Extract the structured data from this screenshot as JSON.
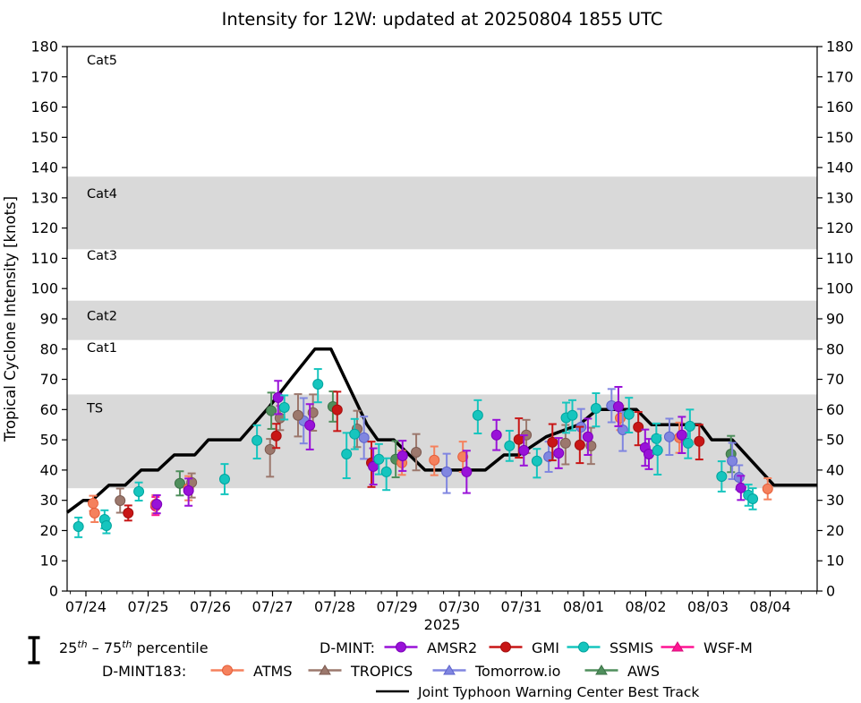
{
  "title": "Intensity for 12W: updated at 20250804 1855 UTC",
  "y_axis": {
    "label": "Tropical Cyclone Intensity [knots]",
    "min": 0,
    "max": 180,
    "tick_step": 10
  },
  "x_axis": {
    "year_label": "2025",
    "tick_labels": [
      "07/24",
      "07/25",
      "07/26",
      "07/27",
      "07/28",
      "07/29",
      "07/30",
      "07/31",
      "08/01",
      "08/02",
      "08/03",
      "08/04"
    ]
  },
  "category_bands": {
    "band_color": "#d9d9d9",
    "shaded_ranges": [
      [
        34,
        65
      ],
      [
        83,
        96
      ],
      [
        113,
        137
      ]
    ],
    "labels": [
      {
        "text": "Cat5",
        "v": 175.5
      },
      {
        "text": "Cat4",
        "v": 131.5
      },
      {
        "text": "Cat3",
        "v": 111
      },
      {
        "text": "Cat2",
        "v": 91
      },
      {
        "text": "Cat1",
        "v": 80.5
      },
      {
        "text": "TS",
        "v": 60.5
      }
    ]
  },
  "chart_data": {
    "type": "scatter",
    "x_unit": "days since 2025-07-24 00:00 UTC",
    "y_unit": "knots",
    "ylim": [
      0,
      180
    ],
    "xlim_days": [
      -0.302,
      11.755
    ],
    "best_track": {
      "name": "Joint Typhoon Warning Center Best Track",
      "color": "#000000",
      "points": [
        [
          -0.302,
          26
        ],
        [
          -0.04,
          30
        ],
        [
          0.1,
          30
        ],
        [
          0.37,
          35
        ],
        [
          0.63,
          35
        ],
        [
          0.89,
          40
        ],
        [
          1.16,
          40
        ],
        [
          1.42,
          45
        ],
        [
          1.75,
          45
        ],
        [
          1.97,
          50
        ],
        [
          2.48,
          50
        ],
        [
          2.95,
          61
        ],
        [
          3.33,
          71
        ],
        [
          3.68,
          80
        ],
        [
          3.94,
          80
        ],
        [
          4.52,
          55
        ],
        [
          4.69,
          50
        ],
        [
          4.95,
          50
        ],
        [
          5.45,
          40
        ],
        [
          6.42,
          40
        ],
        [
          6.72,
          45
        ],
        [
          6.96,
          45
        ],
        [
          7.4,
          51
        ],
        [
          7.93,
          55
        ],
        [
          8.22,
          60
        ],
        [
          8.85,
          60
        ],
        [
          9.09,
          55
        ],
        [
          9.88,
          55
        ],
        [
          10.06,
          50
        ],
        [
          10.39,
          50
        ],
        [
          11.06,
          35
        ],
        [
          11.755,
          35
        ]
      ]
    },
    "draw_order": [
      "AWS",
      "WSF-M",
      "ATMS",
      "Tomorrow.io",
      "TROPICS",
      "GMI",
      "AMSR2",
      "SSMIS"
    ],
    "series": [
      {
        "name": "AMSR2",
        "group": "D-MINT",
        "color": "#9912d8",
        "edge": "#7d00bb",
        "marker": "circle",
        "points": [
          [
            1.14,
            28.7,
            3,
            3
          ],
          [
            1.65,
            33.2,
            5,
            4
          ],
          [
            3.09,
            64,
            5.5,
            5.5
          ],
          [
            3.6,
            54.8,
            8,
            7
          ],
          [
            4.62,
            41.2,
            6,
            6
          ],
          [
            5.09,
            44.7,
            5,
            5
          ],
          [
            6.12,
            39.4,
            7,
            7
          ],
          [
            6.6,
            51.6,
            5,
            5
          ],
          [
            7.04,
            46.5,
            5,
            5
          ],
          [
            7.6,
            45.6,
            5,
            5
          ],
          [
            8.07,
            51,
            6,
            6
          ],
          [
            8.56,
            61,
            6.5,
            6.5
          ],
          [
            8.99,
            47.4,
            6,
            6
          ],
          [
            9.05,
            45.3,
            5,
            5
          ],
          [
            9.58,
            51.6,
            6,
            6
          ],
          [
            10.53,
            34.1,
            4,
            4
          ]
        ]
      },
      {
        "name": "GMI",
        "group": "D-MINT",
        "color": "#c81616",
        "edge": "#a40f0f",
        "marker": "circle",
        "points": [
          [
            0.68,
            25.8,
            2.5,
            2.5
          ],
          [
            3.06,
            51.3,
            4,
            4
          ],
          [
            4.04,
            59.9,
            7,
            6
          ],
          [
            4.59,
            42.4,
            8,
            7
          ],
          [
            6.96,
            50.1,
            6,
            7
          ],
          [
            7.5,
            49.2,
            6,
            6
          ],
          [
            7.94,
            48.3,
            6,
            6
          ],
          [
            8.88,
            54.2,
            6,
            5
          ],
          [
            9.86,
            49.5,
            6,
            5.5
          ]
        ]
      },
      {
        "name": "SSMIS",
        "group": "D-MINT",
        "color": "#16c5be",
        "edge": "#00a49e",
        "marker": "circle",
        "points": [
          [
            -0.12,
            21.3,
            3.5,
            3
          ],
          [
            0.3,
            23.7,
            3,
            3
          ],
          [
            0.33,
            21.6,
            2.5,
            2.5
          ],
          [
            0.85,
            32.9,
            3,
            3
          ],
          [
            2.23,
            37,
            5,
            5
          ],
          [
            2.75,
            49.8,
            6,
            5
          ],
          [
            3.19,
            60.7,
            4,
            4
          ],
          [
            3.73,
            68.4,
            6,
            5
          ],
          [
            4.19,
            45.3,
            8,
            7
          ],
          [
            4.32,
            51.9,
            5,
            5
          ],
          [
            4.71,
            43.6,
            5,
            5
          ],
          [
            4.83,
            39.4,
            6,
            4.5
          ],
          [
            6.3,
            58.1,
            6,
            5
          ],
          [
            6.81,
            48,
            5,
            5
          ],
          [
            7.25,
            43,
            5.5,
            4
          ],
          [
            7.72,
            57.3,
            5,
            5
          ],
          [
            7.82,
            58.1,
            5,
            5
          ],
          [
            8.2,
            60.4,
            6,
            5
          ],
          [
            8.73,
            58.4,
            6,
            5.5
          ],
          [
            9.17,
            50.4,
            5,
            5
          ],
          [
            9.19,
            46.5,
            8,
            5
          ],
          [
            9.68,
            48.9,
            5,
            5
          ],
          [
            9.71,
            54.5,
            6,
            5.5
          ],
          [
            10.22,
            37.9,
            5,
            5
          ],
          [
            10.65,
            31.7,
            3.5,
            3.5
          ],
          [
            10.72,
            30.5,
            3.5,
            3.5
          ]
        ]
      },
      {
        "name": "WSF-M",
        "group": "D-MINT",
        "color": "#ff1493",
        "edge": "#d6117b",
        "marker": "triangle",
        "points": [
          [
            1.12,
            28.1,
            3,
            3
          ]
        ]
      },
      {
        "name": "ATMS",
        "group": "D-MINT183",
        "color": "#f5815d",
        "edge": "#e55f3a",
        "marker": "circle",
        "points": [
          [
            0.115,
            29,
            2.5,
            2.5
          ],
          [
            0.14,
            25.8,
            3,
            3
          ],
          [
            1.12,
            28.7,
            3,
            3
          ],
          [
            1.65,
            34,
            4,
            4
          ],
          [
            5.08,
            42.4,
            4,
            4
          ],
          [
            5.6,
            43.3,
            5,
            4.5
          ],
          [
            6.06,
            44.4,
            5,
            5
          ],
          [
            8.59,
            57.2,
            4,
            4
          ],
          [
            9.54,
            50.7,
            5,
            5
          ],
          [
            10.96,
            33.8,
            3.5,
            3.5
          ]
        ]
      },
      {
        "name": "TROPICS",
        "group": "D-MINT183",
        "color": "#9c786d",
        "edge": "#7c5a50",
        "marker": "triangle",
        "points": [
          [
            0.55,
            29.9,
            4,
            4
          ],
          [
            1.7,
            35.9,
            5,
            3
          ],
          [
            2.96,
            46.8,
            9,
            3.5
          ],
          [
            3.12,
            57.2,
            4,
            4
          ],
          [
            3.41,
            58.1,
            7,
            7
          ],
          [
            3.65,
            59,
            6,
            6
          ],
          [
            4.36,
            53.6,
            6,
            6
          ],
          [
            5.31,
            45.9,
            6,
            6
          ],
          [
            7.08,
            51.6,
            6,
            5
          ],
          [
            7.71,
            48.9,
            7,
            6
          ],
          [
            8.12,
            48,
            6,
            6
          ]
        ]
      },
      {
        "name": "Tomorrow.io",
        "group": "D-MINT183",
        "color": "#8086e0",
        "edge": "#5d63cd",
        "marker": "triangle",
        "points": [
          [
            3.5,
            56.3,
            7.5,
            7.5
          ],
          [
            4.47,
            50.7,
            7,
            7
          ],
          [
            5.8,
            39.4,
            7,
            6
          ],
          [
            7.44,
            44.4,
            5,
            5
          ],
          [
            7.96,
            54.2,
            6,
            6
          ],
          [
            8.45,
            61.3,
            5.5,
            5.5
          ],
          [
            8.63,
            53.3,
            7,
            6
          ],
          [
            9.38,
            51,
            6,
            6
          ],
          [
            10.39,
            43,
            6,
            6
          ],
          [
            10.5,
            37.6,
            4,
            4
          ]
        ]
      },
      {
        "name": "AWS",
        "group": "D-MINT183",
        "color": "#4f8f5c",
        "edge": "#3c7247",
        "marker": "triangle",
        "points": [
          [
            1.51,
            35.6,
            4,
            4
          ],
          [
            2.98,
            59.6,
            6,
            6
          ],
          [
            3.97,
            61,
            5,
            5
          ],
          [
            4.98,
            43.6,
            6,
            6
          ],
          [
            10.37,
            45.3,
            6,
            6
          ]
        ]
      }
    ]
  },
  "legend": {
    "percentile": {
      "base1": "25",
      "sup1": "th",
      "base2": " – 75",
      "sup2": "th",
      "base3": " percentile"
    },
    "groups": [
      {
        "label": "D-MINT:",
        "entries": [
          {
            "name": "AMSR2"
          },
          {
            "name": "GMI"
          },
          {
            "name": "SSMIS"
          },
          {
            "name": "WSF-M"
          }
        ]
      },
      {
        "label": "D-MINT183:",
        "entries": [
          {
            "name": "ATMS"
          },
          {
            "name": "TROPICS"
          },
          {
            "name": "Tomorrow.io"
          },
          {
            "name": "AWS"
          }
        ]
      }
    ],
    "best_track_label": "Joint Typhoon Warning Center Best Track"
  }
}
